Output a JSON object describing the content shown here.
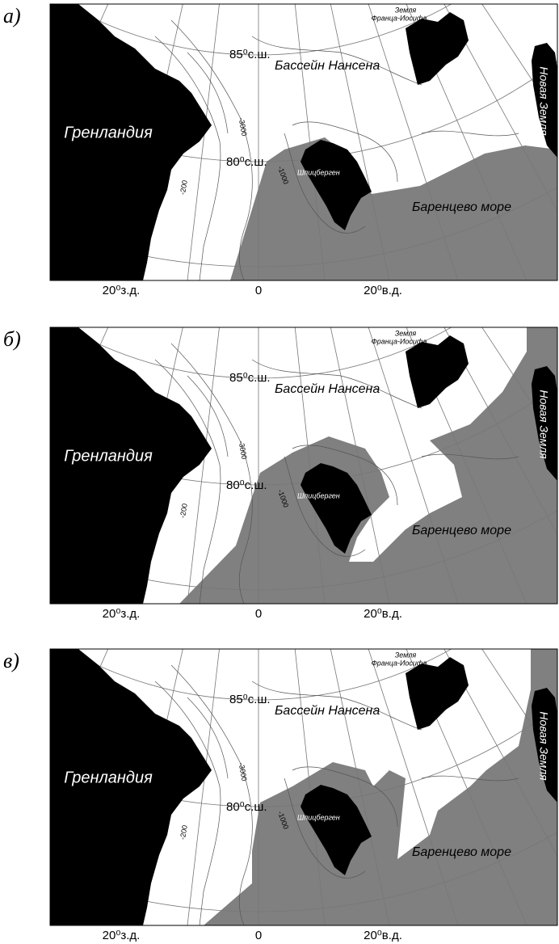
{
  "panels": [
    {
      "label": "а)",
      "greenland": "Гренландия",
      "basin": "Бассейн Нансена",
      "lat85": "85⁰с.ш.",
      "lat80": "80⁰с.ш.",
      "svalbard": "Шпицберген",
      "barents": "Баренцево море",
      "fjl": [
        "Земля",
        "Франца-Иосифа"
      ],
      "novaya": "Новая Земля",
      "depth3000": "-3000",
      "depth1000": "-1000",
      "depth200": "-200",
      "lon": [
        "20⁰з.д.",
        "0",
        "20⁰в.д."
      ]
    },
    {
      "label": "б)",
      "greenland": "Гренландия",
      "basin": "Бассейн Нансена",
      "lat85": "85⁰с.ш.",
      "lat80": "80⁰с.ш.",
      "svalbard": "Шпицберген",
      "barents": "Баренцево море",
      "fjl": [
        "Земля",
        "Франца-Иосифа"
      ],
      "novaya": "Новая Земля",
      "depth3000": "-3000",
      "depth1000": "-1000",
      "depth200": "-200",
      "lon": [
        "20⁰з.д.",
        "0",
        "20⁰в.д."
      ]
    },
    {
      "label": "в)",
      "greenland": "Гренландия",
      "basin": "Бассейн Нансена",
      "lat85": "85⁰с.ш.",
      "lat80": "80⁰с.ш.",
      "svalbard": "Шпицберген",
      "barents": "Баренцево море",
      "fjl": [
        "Земля",
        "Франца-Иосифа"
      ],
      "novaya": "Новая Земля",
      "depth3000": "-3000",
      "depth1000": "-1000",
      "depth200": "-200",
      "lon": [
        "20⁰з.д.",
        "0",
        "20⁰в.д."
      ]
    }
  ]
}
